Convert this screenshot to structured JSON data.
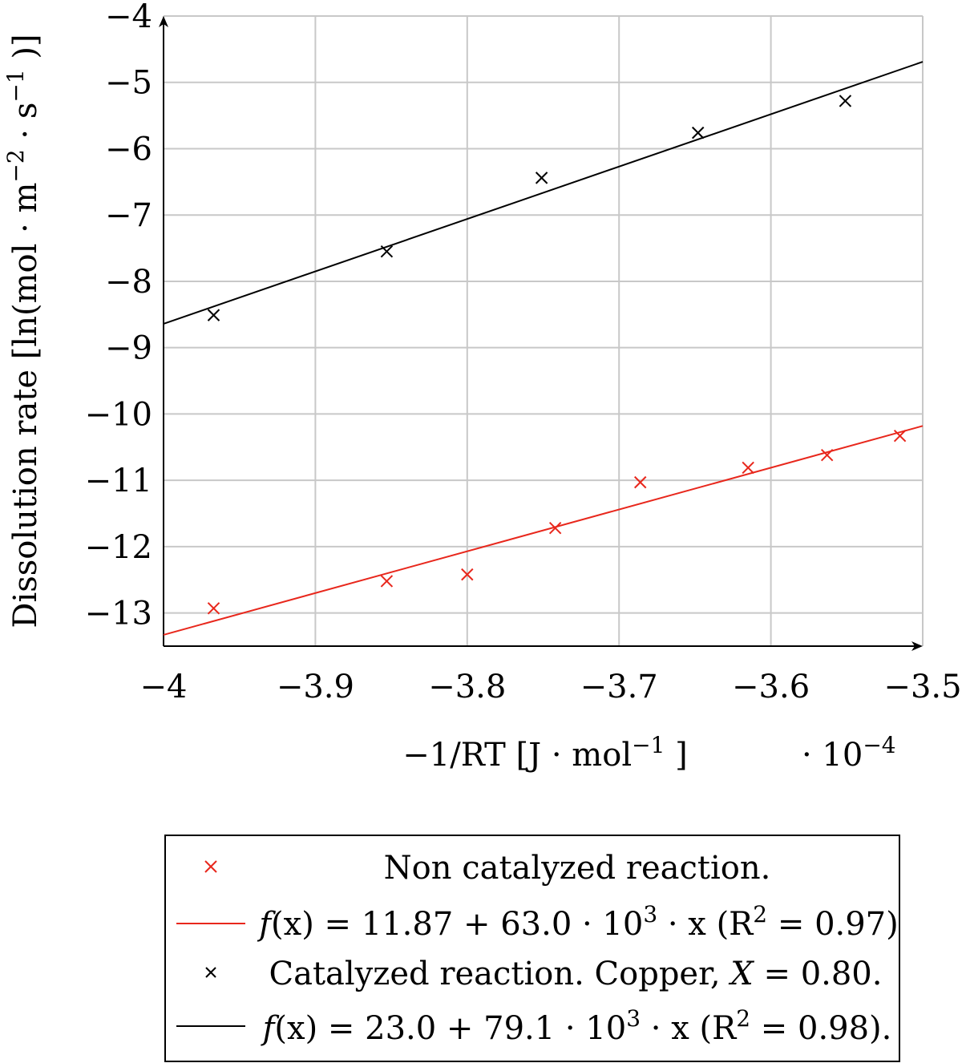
{
  "chart_data": {
    "type": "scatter",
    "xlabel": "−1/RT [J · mol",
    "xlabel_sup": "−1",
    "xlabel_close": " ]",
    "x_multiplier": "· 10",
    "x_multiplier_exp": "−4",
    "ylabel": "Dissolution rate [ln(mol · m",
    "ylabel_sup1": "−2",
    "ylabel_mid": " · s",
    "ylabel_sup2": "−1",
    "ylabel_close": " )]",
    "xlim": [
      -4.0,
      -3.5
    ],
    "ylim": [
      -13.5,
      -4
    ],
    "x_ticks": [
      -4.0,
      -3.9,
      -3.8,
      -3.7,
      -3.6,
      -3.5
    ],
    "x_tick_labels": [
      "−4",
      "−3.9",
      "−3.8",
      "−3.7",
      "−3.6",
      "−3.5"
    ],
    "y_ticks": [
      -13,
      -12,
      -11,
      -10,
      -9,
      -8,
      -7,
      -6,
      -5,
      -4
    ],
    "y_tick_labels": [
      "−13",
      "−12",
      "−11",
      "−10",
      "−9",
      "−8",
      "−7",
      "−6",
      "−5",
      "−4"
    ],
    "grid": true,
    "legend_position": "bottom",
    "series": [
      {
        "name": "Non catalyzed reaction.",
        "kind": "scatter",
        "marker": "x",
        "color": "#e8271c",
        "points": [
          [
            -3.967,
            -12.93
          ],
          [
            -3.853,
            -12.52
          ],
          [
            -3.8,
            -12.42
          ],
          [
            -3.742,
            -11.72
          ],
          [
            -3.686,
            -11.03
          ],
          [
            -3.615,
            -10.81
          ],
          [
            -3.563,
            -10.62
          ],
          [
            -3.515,
            -10.33
          ]
        ]
      },
      {
        "name": "f(x) = 11.87 + 63.0 · 10³ · x (R² = 0.97)",
        "kind": "line",
        "color": "#e8271c",
        "points": [
          [
            -4.0,
            -13.33
          ],
          [
            -3.5,
            -10.18
          ]
        ]
      },
      {
        "name": "Catalyzed reaction. Copper, X = 0.80.",
        "kind": "scatter",
        "marker": "x",
        "color": "#000000",
        "points": [
          [
            -3.967,
            -8.51
          ],
          [
            -3.853,
            -7.55
          ],
          [
            -3.751,
            -6.44
          ],
          [
            -3.648,
            -5.76
          ],
          [
            -3.551,
            -5.28
          ]
        ]
      },
      {
        "name": "f(x) = 23.0 + 79.1 · 10³ · x (R² = 0.98).",
        "kind": "line",
        "color": "#000000",
        "points": [
          [
            -4.0,
            -8.64
          ],
          [
            -3.5,
            -4.69
          ]
        ]
      }
    ]
  },
  "legend": {
    "entries": [
      {
        "label": "Non catalyzed reaction."
      },
      {
        "label_f": "f",
        "label_pre": "(x) = 11.87 + 63.0 · 10",
        "sup_a": "3",
        "label_mid": " · x (R",
        "sup_b": "2",
        "label_post": " = 0.97)"
      },
      {
        "label_pre": "Catalyzed reaction. Copper, ",
        "label_var": "X",
        "label_post": " = 0.80."
      },
      {
        "label_f": "f",
        "label_pre": "(x) = 23.0 + 79.1 · 10",
        "sup_a": "3",
        "label_mid": " · x (R",
        "sup_b": "2",
        "label_post": " = 0.98)."
      }
    ]
  }
}
